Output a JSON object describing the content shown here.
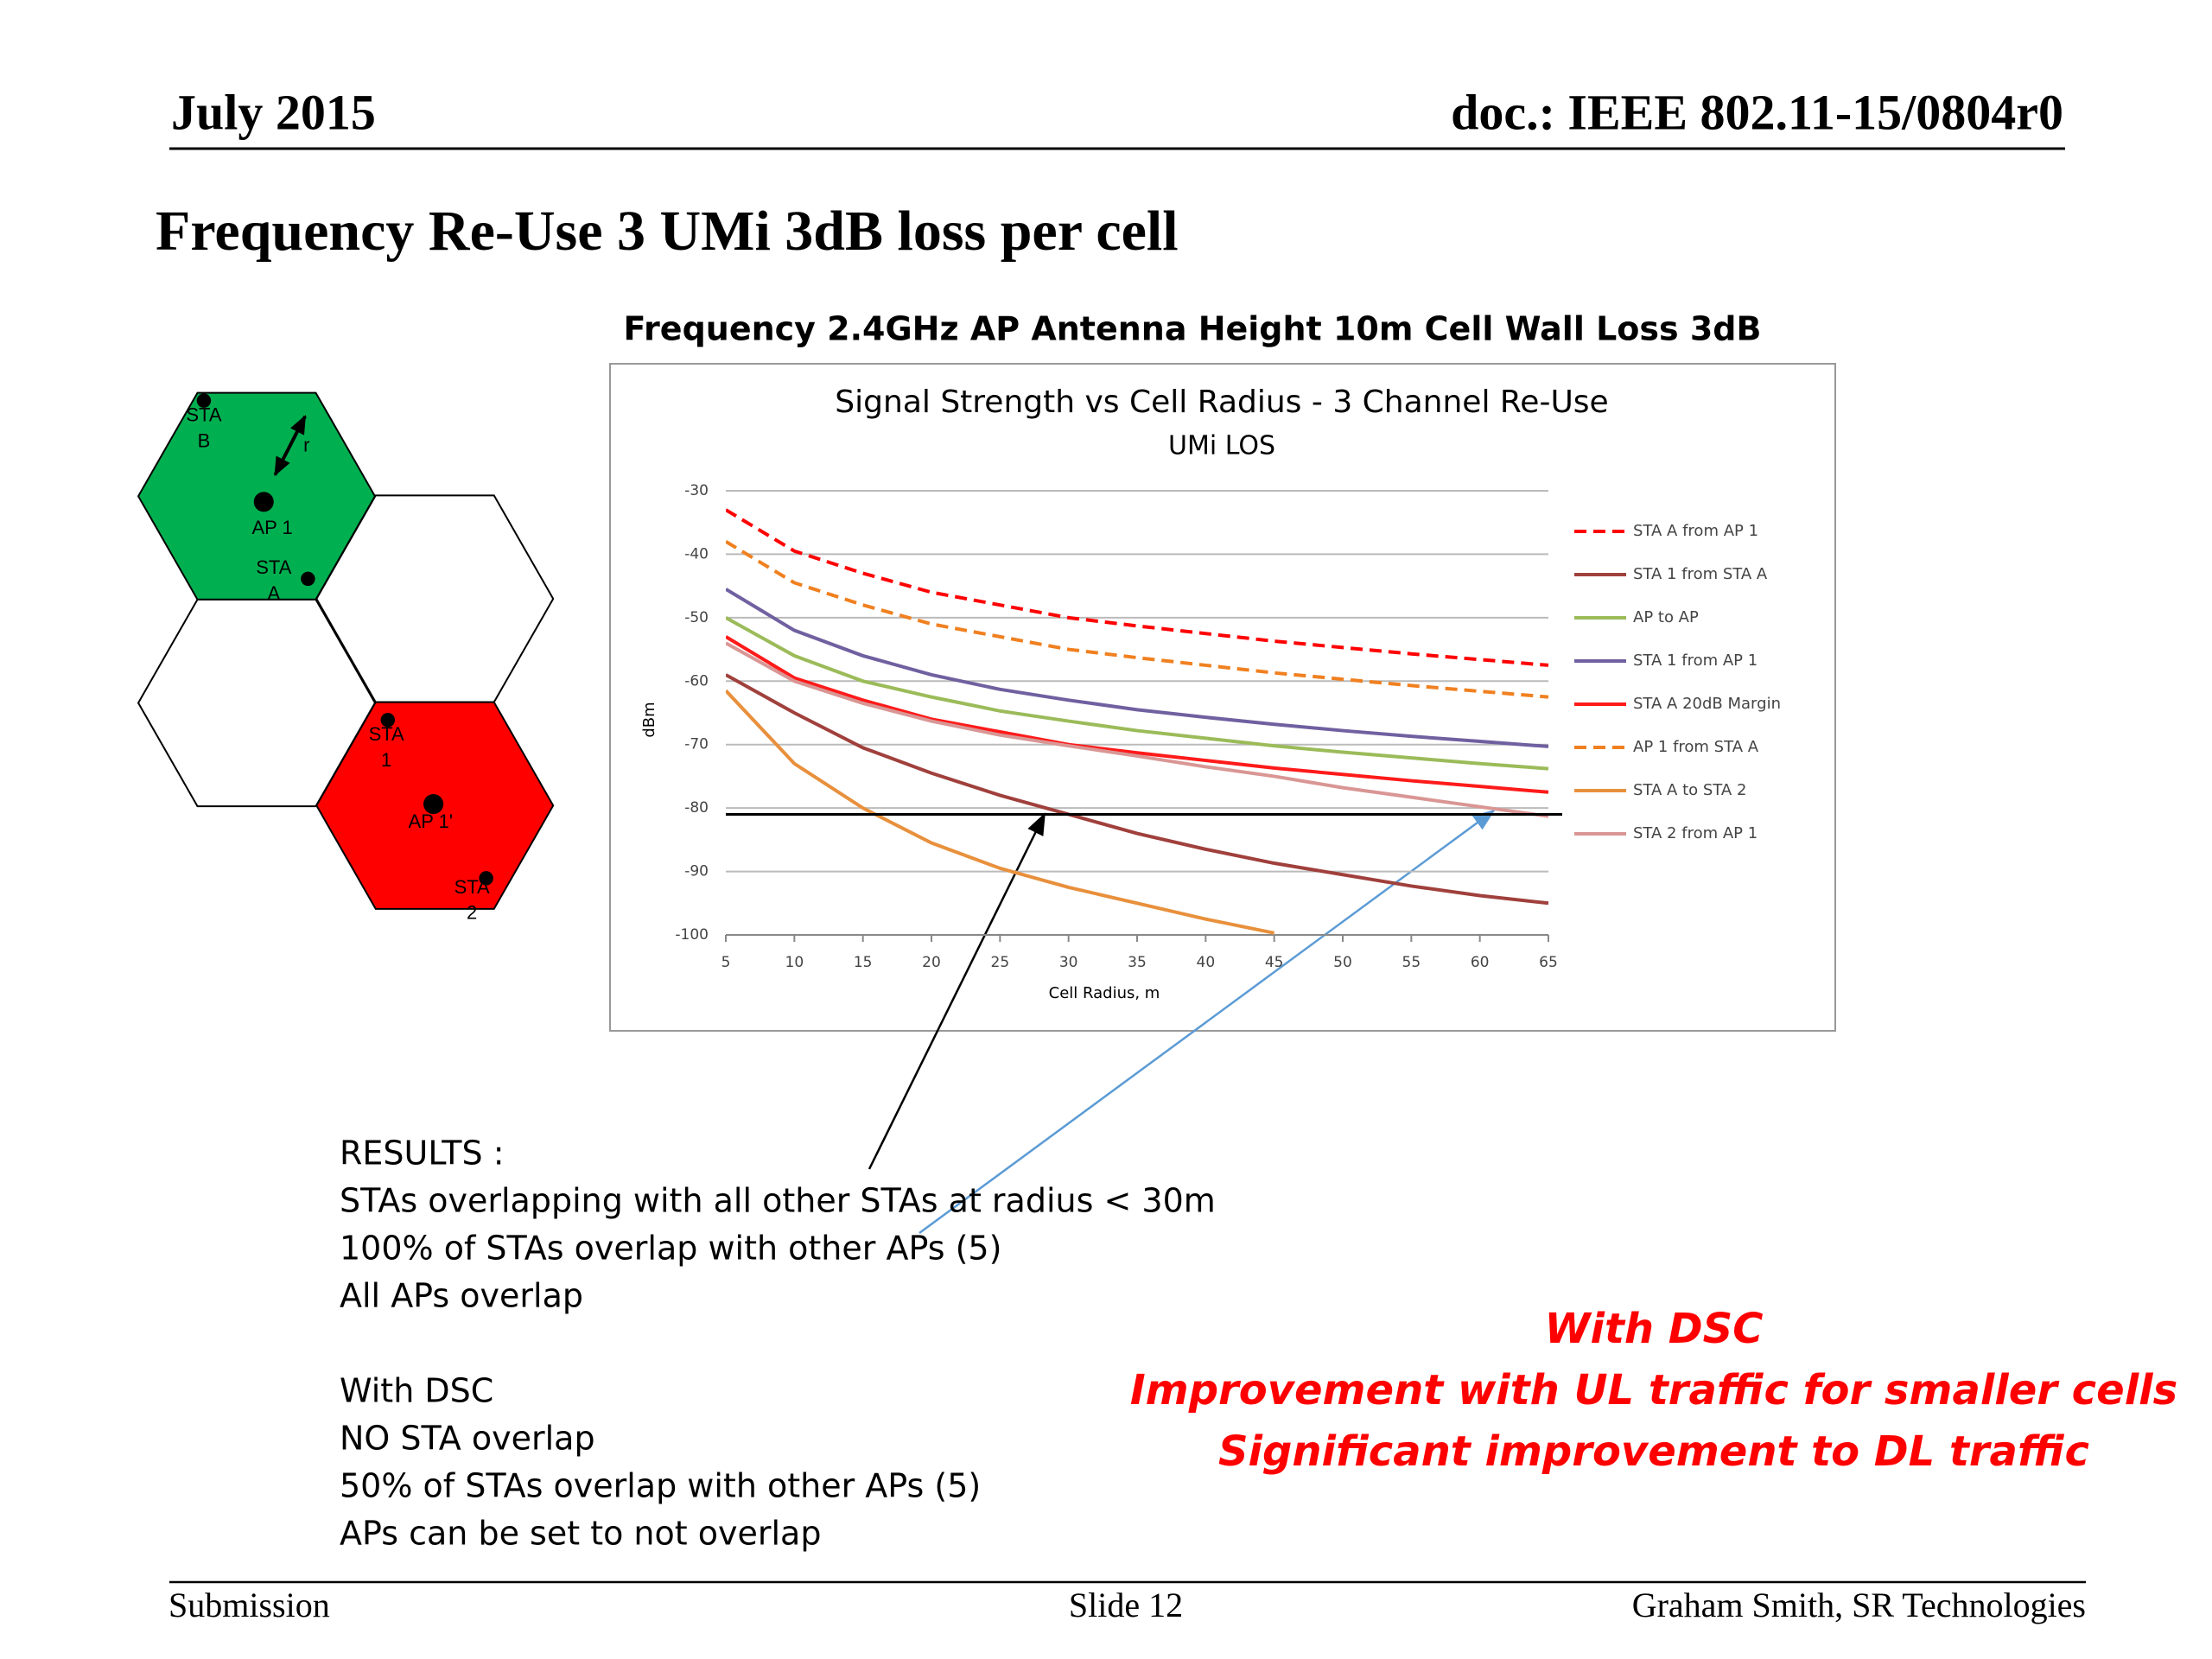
{
  "header": {
    "date": "July 2015",
    "doc": "doc.: IEEE 802.11-15/0804r0"
  },
  "title": "Frequency Re-Use 3  UMi 3dB loss per cell",
  "subtitle": "Frequency 2.4GHz   AP Antenna Height 10m    Cell Wall Loss  3dB",
  "diagram": {
    "labels": [
      [
        "STA",
        "B"
      ],
      [
        "AP 1"
      ],
      [
        "STA",
        "A"
      ],
      [
        "r"
      ],
      [
        "STA",
        "1"
      ],
      [
        "AP 1'"
      ],
      [
        "STA",
        "2"
      ]
    ]
  },
  "chart_data": {
    "type": "line",
    "title": "Signal Strength vs Cell Radius - 3 Channel Re-Use",
    "subtitle": "UMi LOS",
    "x_label": "Cell Radius, m",
    "y_label": "dBm",
    "x": [
      5,
      10,
      15,
      20,
      25,
      30,
      35,
      40,
      45,
      50,
      55,
      60,
      65
    ],
    "xlim": [
      5,
      65
    ],
    "xticks": [
      5,
      10,
      15,
      20,
      25,
      30,
      35,
      40,
      45,
      50,
      55,
      60,
      65
    ],
    "ylim": [
      -100,
      -30
    ],
    "yticks": [
      -100,
      -90,
      -80,
      -70,
      -60,
      -50,
      -40,
      -30
    ],
    "grid": true,
    "legend": "right",
    "reference_line": -81,
    "series": [
      {
        "name": "STA A from AP 1",
        "color": "#ff0000",
        "dashed": true,
        "values": [
          -33,
          -39.5,
          -43,
          -46,
          -48,
          -50,
          -51.3,
          -52.5,
          -53.7,
          -54.7,
          -55.7,
          -56.6,
          -57.5
        ]
      },
      {
        "name": "STA 1 from STA A",
        "color": "#a0403c",
        "dashed": false,
        "values": [
          -59,
          -65,
          -70.5,
          -74.5,
          -78,
          -81,
          -84,
          -86.5,
          -88.7,
          -90.5,
          -92.3,
          -93.8,
          -95
        ]
      },
      {
        "name": "AP to AP",
        "color": "#9bbb59",
        "dashed": false,
        "values": [
          -50,
          -56,
          -60,
          -62.5,
          -64.7,
          -66.3,
          -67.8,
          -69,
          -70.2,
          -71.2,
          -72.1,
          -73,
          -73.8
        ]
      },
      {
        "name": "STA 1 from AP 1",
        "color": "#7060a0",
        "dashed": false,
        "values": [
          -45.5,
          -52,
          -56,
          -59,
          -61.3,
          -63,
          -64.5,
          -65.7,
          -66.8,
          -67.8,
          -68.7,
          -69.5,
          -70.3
        ]
      },
      {
        "name": "STA A 20dB Margin",
        "color": "#ff1a1a",
        "dashed": false,
        "values": [
          -53,
          -59.5,
          -63,
          -66,
          -68,
          -70,
          -71.3,
          -72.5,
          -73.7,
          -74.7,
          -75.7,
          -76.6,
          -77.5
        ]
      },
      {
        "name": "AP 1 from STA A",
        "color": "#f08020",
        "dashed": true,
        "values": [
          -38,
          -44.5,
          -48,
          -51,
          -53,
          -55,
          -56.3,
          -57.5,
          -58.7,
          -59.7,
          -60.7,
          -61.6,
          -62.5
        ]
      },
      {
        "name": "STA A to STA 2",
        "color": "#e8903c",
        "dashed": false,
        "values": [
          -61.5,
          -73,
          -80,
          -85.5,
          -89.5,
          -92.5,
          -95,
          -97.5,
          -99.7,
          null,
          null,
          null,
          null
        ]
      },
      {
        "name": "STA 2 from AP 1",
        "color": "#d99694",
        "dashed": false,
        "values": [
          -54,
          -60,
          -63.5,
          -66.3,
          -68.5,
          -70.2,
          -71.8,
          -73.5,
          -75,
          -76.8,
          -78.3,
          -79.8,
          -81.3
        ]
      }
    ]
  },
  "results": [
    "RESULTS :",
    " STAs overlapping with all other STAs at radius < 30m",
    "100% of STAs overlap with other APs (5)",
    "All APs overlap"
  ],
  "dsc_results": [
    "With DSC",
    "NO STA overlap",
    "50% of STAs overlap with other APs (5)",
    "APs can be set to not overlap"
  ],
  "conclusion": [
    "With DSC",
    "Improvement with UL traffic for smaller cells",
    "Significant improvement to DL traffic"
  ],
  "footer": {
    "left": "Submission",
    "center": "Slide 12",
    "right": "Graham Smith, SR Technologies"
  }
}
